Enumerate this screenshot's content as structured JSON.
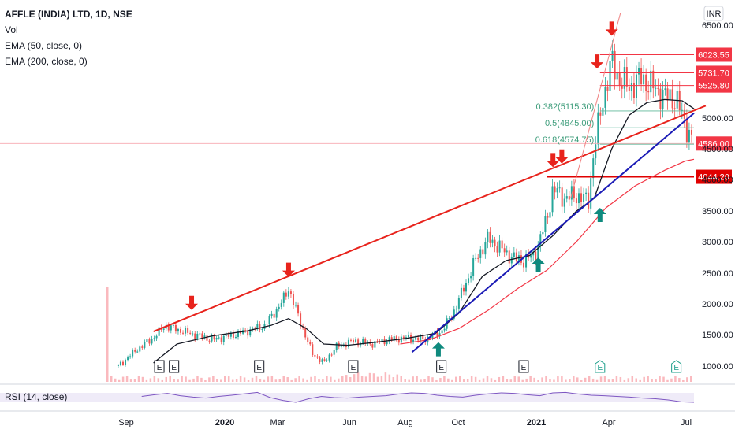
{
  "chart_data": {
    "type": "candlestick",
    "title": "AFFLE (INDIA) LTD, 1D, NSE",
    "legend": [
      "AFFLE (INDIA) LTD, 1D, NSE",
      "Vol",
      "EMA (50, close, 0)",
      "EMA (200, close, 0)"
    ],
    "currency": "INR",
    "y_ticks": [
      1000,
      1500,
      2000,
      2500,
      3000,
      3500,
      4000,
      4500,
      5000,
      6500
    ],
    "y_tick_labels": [
      "1000.00",
      "1500.00",
      "2000.00",
      "2500.00",
      "3000.00",
      "3500.00",
      "4000.00",
      "4500.00",
      "5000.00",
      "6500.00"
    ],
    "x_ticks": [
      {
        "label": "Sep",
        "bold": false
      },
      {
        "label": "2020",
        "bold": true
      },
      {
        "label": "Mar",
        "bold": false
      },
      {
        "label": "Jun",
        "bold": false
      },
      {
        "label": "Aug",
        "bold": false
      },
      {
        "label": "Oct",
        "bold": false
      },
      {
        "label": "2021",
        "bold": true
      },
      {
        "label": "Apr",
        "bold": false
      },
      {
        "label": "Jul",
        "bold": false
      }
    ],
    "price_tags": [
      {
        "label": "6023.55",
        "value": 6023.55,
        "color": "#f23645"
      },
      {
        "label": "5731.70",
        "value": 5731.7,
        "color": "#f23645"
      },
      {
        "label": "5525.80",
        "value": 5525.8,
        "color": "#f23645"
      },
      {
        "label": "4586.00",
        "value": 4586.0,
        "color": "#f23645"
      },
      {
        "label": "4044.20",
        "value": 4044.2,
        "color": "#e00000"
      }
    ],
    "fib_levels": [
      {
        "label": "0.382(5115.30)",
        "value": 5115.3
      },
      {
        "label": "0.5(4845.00)",
        "value": 4845.0
      },
      {
        "label": "0.618(4574.75)",
        "value": 4574.75
      }
    ],
    "close_series": [
      {
        "t": 0.02,
        "v": 1000
      },
      {
        "t": 0.05,
        "v": 1250
      },
      {
        "t": 0.08,
        "v": 1450
      },
      {
        "t": 0.1,
        "v": 1650
      },
      {
        "t": 0.12,
        "v": 1580
      },
      {
        "t": 0.15,
        "v": 1500
      },
      {
        "t": 0.18,
        "v": 1420
      },
      {
        "t": 0.21,
        "v": 1480
      },
      {
        "t": 0.24,
        "v": 1560
      },
      {
        "t": 0.27,
        "v": 1650
      },
      {
        "t": 0.3,
        "v": 2050
      },
      {
        "t": 0.31,
        "v": 2250
      },
      {
        "t": 0.33,
        "v": 1700
      },
      {
        "t": 0.35,
        "v": 1200
      },
      {
        "t": 0.37,
        "v": 1050
      },
      {
        "t": 0.39,
        "v": 1300
      },
      {
        "t": 0.42,
        "v": 1400
      },
      {
        "t": 0.45,
        "v": 1350
      },
      {
        "t": 0.48,
        "v": 1420
      },
      {
        "t": 0.51,
        "v": 1450
      },
      {
        "t": 0.54,
        "v": 1420
      },
      {
        "t": 0.57,
        "v": 1550
      },
      {
        "t": 0.59,
        "v": 1850
      },
      {
        "t": 0.61,
        "v": 2300
      },
      {
        "t": 0.63,
        "v": 2750
      },
      {
        "t": 0.65,
        "v": 3050
      },
      {
        "t": 0.67,
        "v": 2900
      },
      {
        "t": 0.69,
        "v": 2750
      },
      {
        "t": 0.71,
        "v": 2700
      },
      {
        "t": 0.73,
        "v": 2800
      },
      {
        "t": 0.75,
        "v": 3400
      },
      {
        "t": 0.76,
        "v": 3850
      },
      {
        "t": 0.78,
        "v": 3700
      },
      {
        "t": 0.8,
        "v": 3750
      },
      {
        "t": 0.82,
        "v": 3650
      },
      {
        "t": 0.83,
        "v": 4500
      },
      {
        "t": 0.845,
        "v": 5300
      },
      {
        "t": 0.86,
        "v": 5900
      },
      {
        "t": 0.875,
        "v": 5600
      },
      {
        "t": 0.89,
        "v": 5500
      },
      {
        "t": 0.91,
        "v": 5650
      },
      {
        "t": 0.93,
        "v": 5500
      },
      {
        "t": 0.95,
        "v": 5350
      },
      {
        "t": 0.97,
        "v": 5300
      },
      {
        "t": 0.985,
        "v": 4900
      },
      {
        "t": 1.0,
        "v": 4586
      }
    ],
    "ema50": [
      {
        "t": 0.08,
        "v": 1050
      },
      {
        "t": 0.12,
        "v": 1350
      },
      {
        "t": 0.18,
        "v": 1480
      },
      {
        "t": 0.24,
        "v": 1560
      },
      {
        "t": 0.28,
        "v": 1650
      },
      {
        "t": 0.31,
        "v": 1760
      },
      {
        "t": 0.34,
        "v": 1600
      },
      {
        "t": 0.37,
        "v": 1350
      },
      {
        "t": 0.41,
        "v": 1330
      },
      {
        "t": 0.46,
        "v": 1380
      },
      {
        "t": 0.51,
        "v": 1440
      },
      {
        "t": 0.56,
        "v": 1520
      },
      {
        "t": 0.6,
        "v": 1850
      },
      {
        "t": 0.64,
        "v": 2450
      },
      {
        "t": 0.68,
        "v": 2700
      },
      {
        "t": 0.72,
        "v": 2780
      },
      {
        "t": 0.76,
        "v": 3100
      },
      {
        "t": 0.8,
        "v": 3500
      },
      {
        "t": 0.83,
        "v": 3700
      },
      {
        "t": 0.86,
        "v": 4500
      },
      {
        "t": 0.89,
        "v": 5050
      },
      {
        "t": 0.92,
        "v": 5250
      },
      {
        "t": 0.95,
        "v": 5300
      },
      {
        "t": 0.98,
        "v": 5280
      },
      {
        "t": 1.0,
        "v": 5150
      }
    ],
    "ema200": [
      {
        "t": 0.5,
        "v": 1350
      },
      {
        "t": 0.55,
        "v": 1420
      },
      {
        "t": 0.6,
        "v": 1600
      },
      {
        "t": 0.65,
        "v": 1900
      },
      {
        "t": 0.7,
        "v": 2250
      },
      {
        "t": 0.75,
        "v": 2550
      },
      {
        "t": 0.8,
        "v": 3000
      },
      {
        "t": 0.85,
        "v": 3550
      },
      {
        "t": 0.9,
        "v": 3900
      },
      {
        "t": 0.95,
        "v": 4150
      },
      {
        "t": 0.985,
        "v": 4300
      },
      {
        "t": 1.0,
        "v": 4330
      }
    ],
    "trendlines": [
      {
        "color": "#e8231c",
        "from": {
          "t": 0.08,
          "v": 1550
        },
        "to": {
          "t": 1.02,
          "v": 5200
        }
      },
      {
        "color": "#1b1bb6",
        "from": {
          "t": 0.52,
          "v": 1220
        },
        "to": {
          "t": 1.0,
          "v": 5080
        }
      },
      {
        "color": "#f08080",
        "from": {
          "t": 0.79,
          "v": 3700
        },
        "to": {
          "t": 0.875,
          "v": 6700
        }
      }
    ],
    "sell_arrows": [
      {
        "t": 0.145,
        "v": 1900
      },
      {
        "t": 0.31,
        "v": 2440
      },
      {
        "t": 0.76,
        "v": 4200
      },
      {
        "t": 0.775,
        "v": 4260
      },
      {
        "t": 0.835,
        "v": 5800
      },
      {
        "t": 0.86,
        "v": 6330
      }
    ],
    "buy_arrows": [
      {
        "t": 0.565,
        "v": 1380
      },
      {
        "t": 0.735,
        "v": 2750
      },
      {
        "t": 0.84,
        "v": 3550
      }
    ],
    "earnings": [
      {
        "t": 0.09,
        "label": "E",
        "style": "past"
      },
      {
        "t": 0.115,
        "label": "E",
        "style": "past"
      },
      {
        "t": 0.26,
        "label": "E",
        "style": "past"
      },
      {
        "t": 0.42,
        "label": "E",
        "style": "past"
      },
      {
        "t": 0.57,
        "label": "E",
        "style": "past"
      },
      {
        "t": 0.71,
        "label": "E",
        "style": "past"
      },
      {
        "t": 0.84,
        "label": "E",
        "style": "future"
      },
      {
        "t": 0.97,
        "label": "E",
        "style": "future"
      }
    ],
    "rsi": {
      "label": "RSI (14, close)",
      "band": [
        30,
        70
      ],
      "values": [
        55,
        62,
        68,
        58,
        52,
        48,
        55,
        60,
        66,
        72,
        50,
        38,
        30,
        45,
        55,
        50,
        48,
        52,
        55,
        58,
        65,
        70,
        68,
        60,
        55,
        52,
        60,
        66,
        70,
        68,
        62,
        58,
        70,
        72,
        65,
        60,
        58,
        55,
        52,
        48,
        45,
        40,
        32,
        30
      ]
    }
  }
}
